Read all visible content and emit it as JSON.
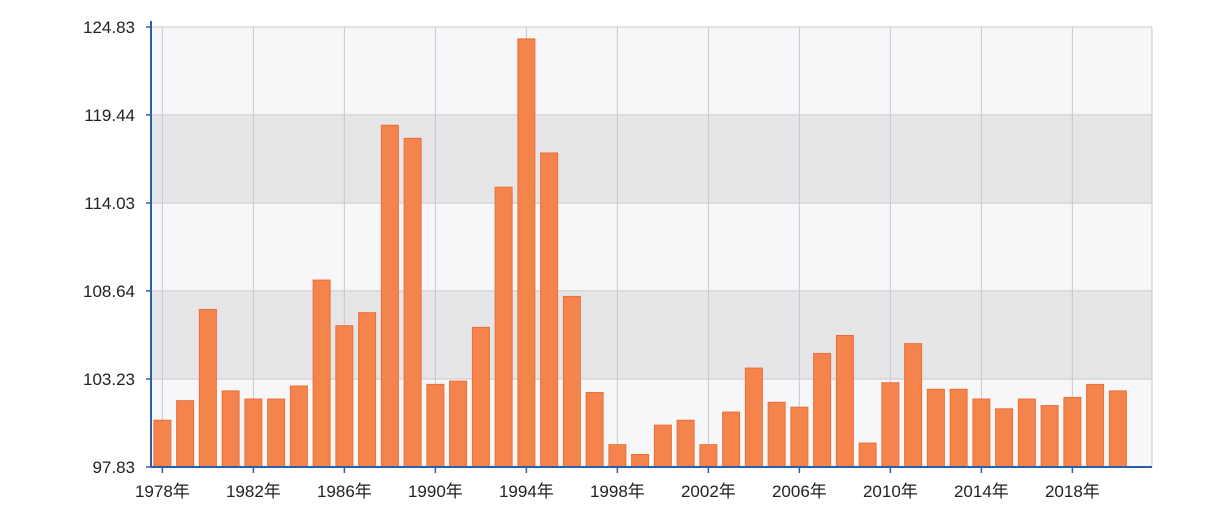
{
  "chart_data": {
    "type": "bar",
    "categories": [
      "1978年",
      "1979年",
      "1980年",
      "1981年",
      "1982年",
      "1983年",
      "1984年",
      "1985年",
      "1986年",
      "1987年",
      "1988年",
      "1989年",
      "1990年",
      "1991年",
      "1992年",
      "1993年",
      "1994年",
      "1995年",
      "1996年",
      "1997年",
      "1998年",
      "1999年",
      "2000年",
      "2001年",
      "2002年",
      "2003年",
      "2004年",
      "2005年",
      "2006年",
      "2007年",
      "2008年",
      "2009年",
      "2010年",
      "2011年",
      "2012年",
      "2013年",
      "2014年",
      "2015年",
      "2016年",
      "2017年",
      "2018年",
      "2019年",
      "2020年",
      "2021年"
    ],
    "values": [
      100.7,
      101.9,
      107.5,
      102.5,
      102.0,
      102.0,
      102.8,
      109.3,
      106.5,
      107.3,
      118.8,
      118.0,
      102.9,
      103.1,
      106.4,
      115.0,
      124.1,
      117.1,
      108.3,
      102.4,
      99.2,
      98.6,
      100.4,
      100.7,
      99.2,
      101.2,
      103.9,
      101.8,
      101.5,
      104.8,
      105.9,
      99.3,
      103.0,
      105.4,
      102.6,
      102.6,
      102.0,
      101.4,
      102.0,
      101.6,
      102.1,
      102.9,
      102.5,
      null
    ],
    "y_ticks": [
      "97.83",
      "103.23",
      "108.64",
      "114.03",
      "119.44",
      "124.83"
    ],
    "x_tick_labels": [
      "1978年",
      "1982年",
      "1986年",
      "1990年",
      "1994年",
      "1998年",
      "2002年",
      "2006年",
      "2010年",
      "2014年",
      "2018年"
    ],
    "ylim": [
      97.83,
      124.83
    ],
    "grid": true,
    "colors": {
      "bar": "#f5844c",
      "bar_stroke": "#e8703a",
      "band_dark": "#e6e6e8",
      "band_light": "#f7f7f9",
      "grid": "#c8c8cc",
      "axis": "#2f5ea5"
    }
  }
}
